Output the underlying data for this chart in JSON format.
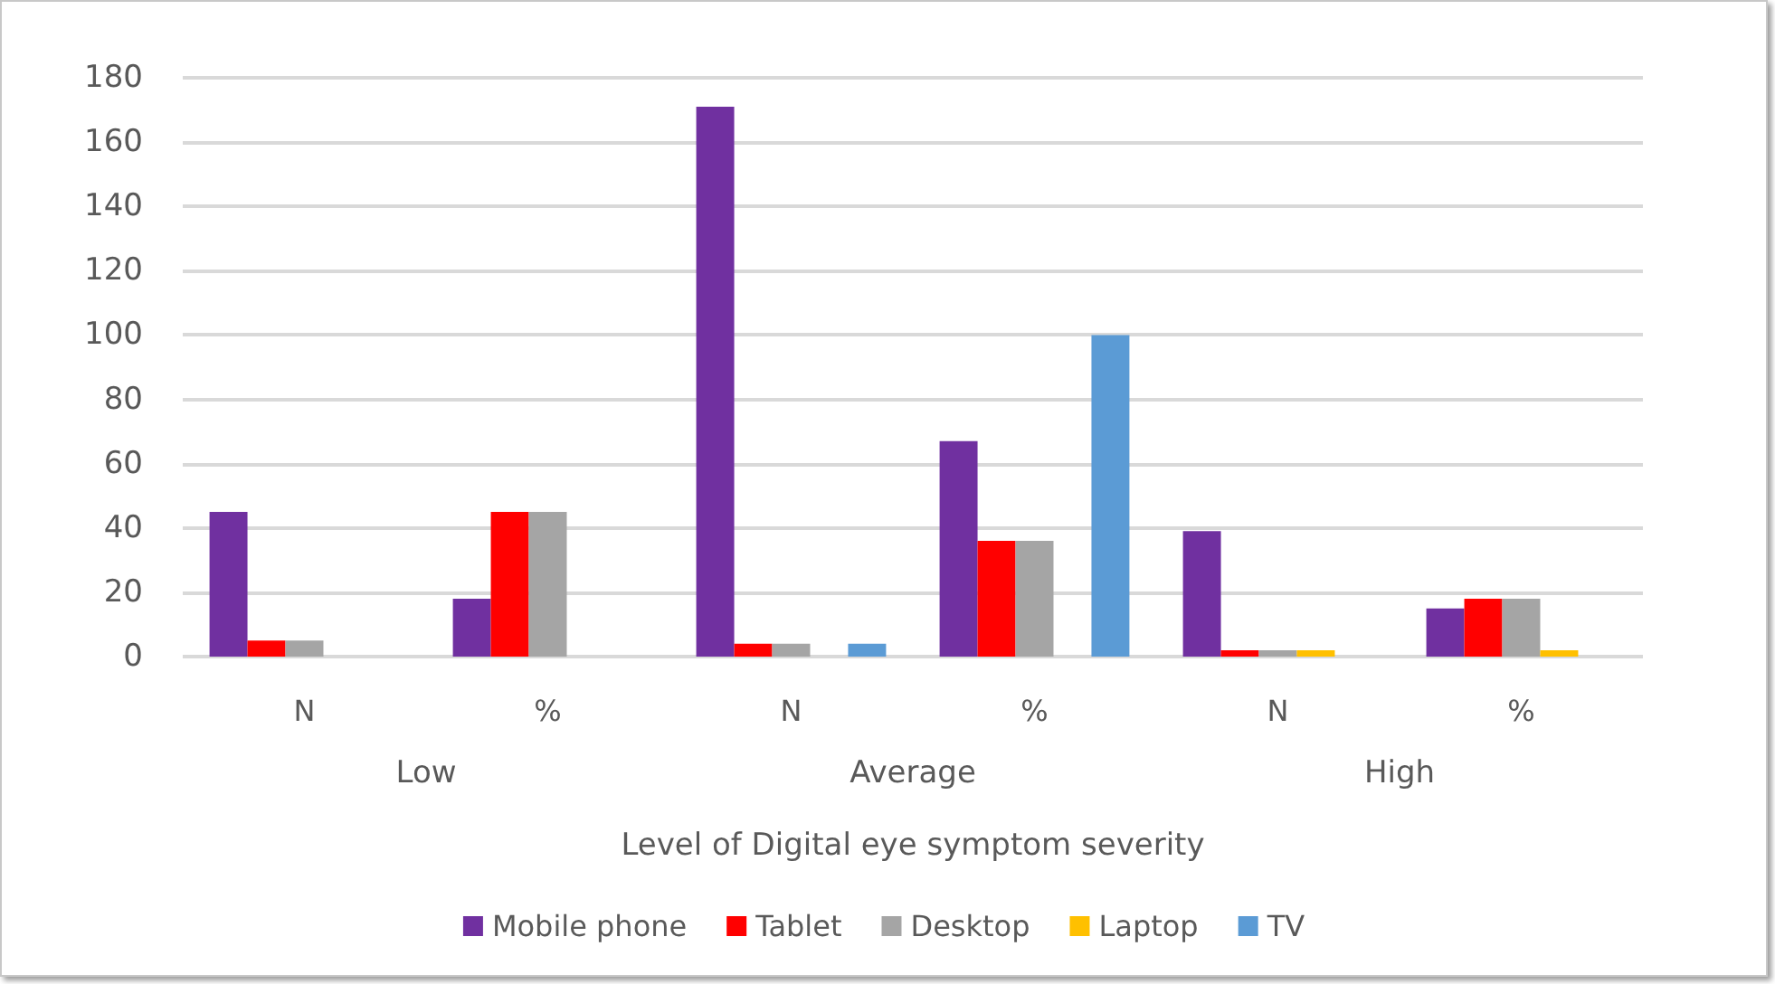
{
  "chart_data": {
    "type": "bar",
    "xlabel": "Level of Digital eye symptom severity",
    "categories": [
      "N",
      "%",
      "N",
      "%",
      "N",
      "%"
    ],
    "annotations": [
      "Low",
      "Average",
      "High"
    ],
    "series": [
      {
        "name": "Mobile phone",
        "color": "#7030a0",
        "values": [
          45,
          18,
          171,
          67,
          39,
          15
        ]
      },
      {
        "name": "Tablet",
        "color": "#ff0000",
        "values": [
          5,
          45,
          4,
          36,
          2,
          18
        ]
      },
      {
        "name": "Desktop",
        "color": "#a5a5a5",
        "values": [
          5,
          45,
          4,
          36,
          2,
          18
        ]
      },
      {
        "name": "Laptop",
        "color": "#ffc000",
        "values": [
          0,
          0,
          0,
          0,
          2,
          2
        ]
      },
      {
        "name": "TV",
        "color": "#5b9bd5",
        "values": [
          0,
          0,
          4,
          100,
          0,
          0
        ]
      }
    ],
    "ylim": [
      0,
      180
    ],
    "yticks": [
      0,
      20,
      40,
      60,
      80,
      100,
      120,
      140,
      160,
      180
    ],
    "grid": "y",
    "legend": "bottom"
  }
}
